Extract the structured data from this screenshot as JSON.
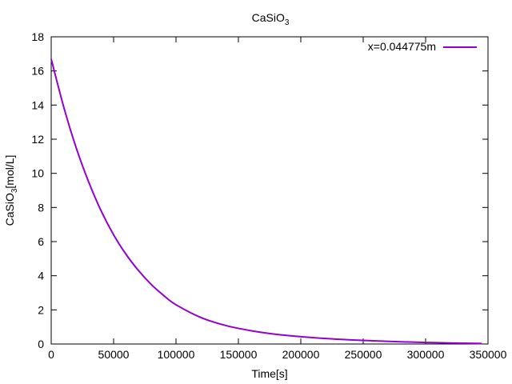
{
  "chart_data": {
    "type": "line",
    "title": "CaSiO",
    "title_subscript": "3",
    "xlabel": "Time[s]",
    "ylabel_prefix": "CaSiO",
    "ylabel_subscript": "3",
    "ylabel_suffix": "[mol/L]",
    "xlim": [
      0,
      350000
    ],
    "ylim": [
      0,
      18
    ],
    "xticks": [
      0,
      50000,
      100000,
      150000,
      200000,
      250000,
      300000,
      350000
    ],
    "yticks": [
      0,
      2,
      4,
      6,
      8,
      10,
      12,
      14,
      16,
      18
    ],
    "grid": false,
    "legend_position": "top-right",
    "series": [
      {
        "name": "x=0.044775m",
        "color": "#9400d3",
        "x": [
          0,
          10000,
          20000,
          30000,
          40000,
          50000,
          60000,
          70000,
          80000,
          90000,
          100000,
          120000,
          140000,
          160000,
          180000,
          200000,
          220000,
          240000,
          260000,
          280000,
          300000,
          320000,
          345000
        ],
        "y": [
          16.7,
          13.9,
          11.5,
          9.5,
          7.8,
          6.4,
          5.25,
          4.3,
          3.5,
          2.85,
          2.3,
          1.55,
          1.08,
          0.78,
          0.57,
          0.43,
          0.32,
          0.24,
          0.18,
          0.13,
          0.09,
          0.06,
          0.03
        ]
      }
    ]
  }
}
